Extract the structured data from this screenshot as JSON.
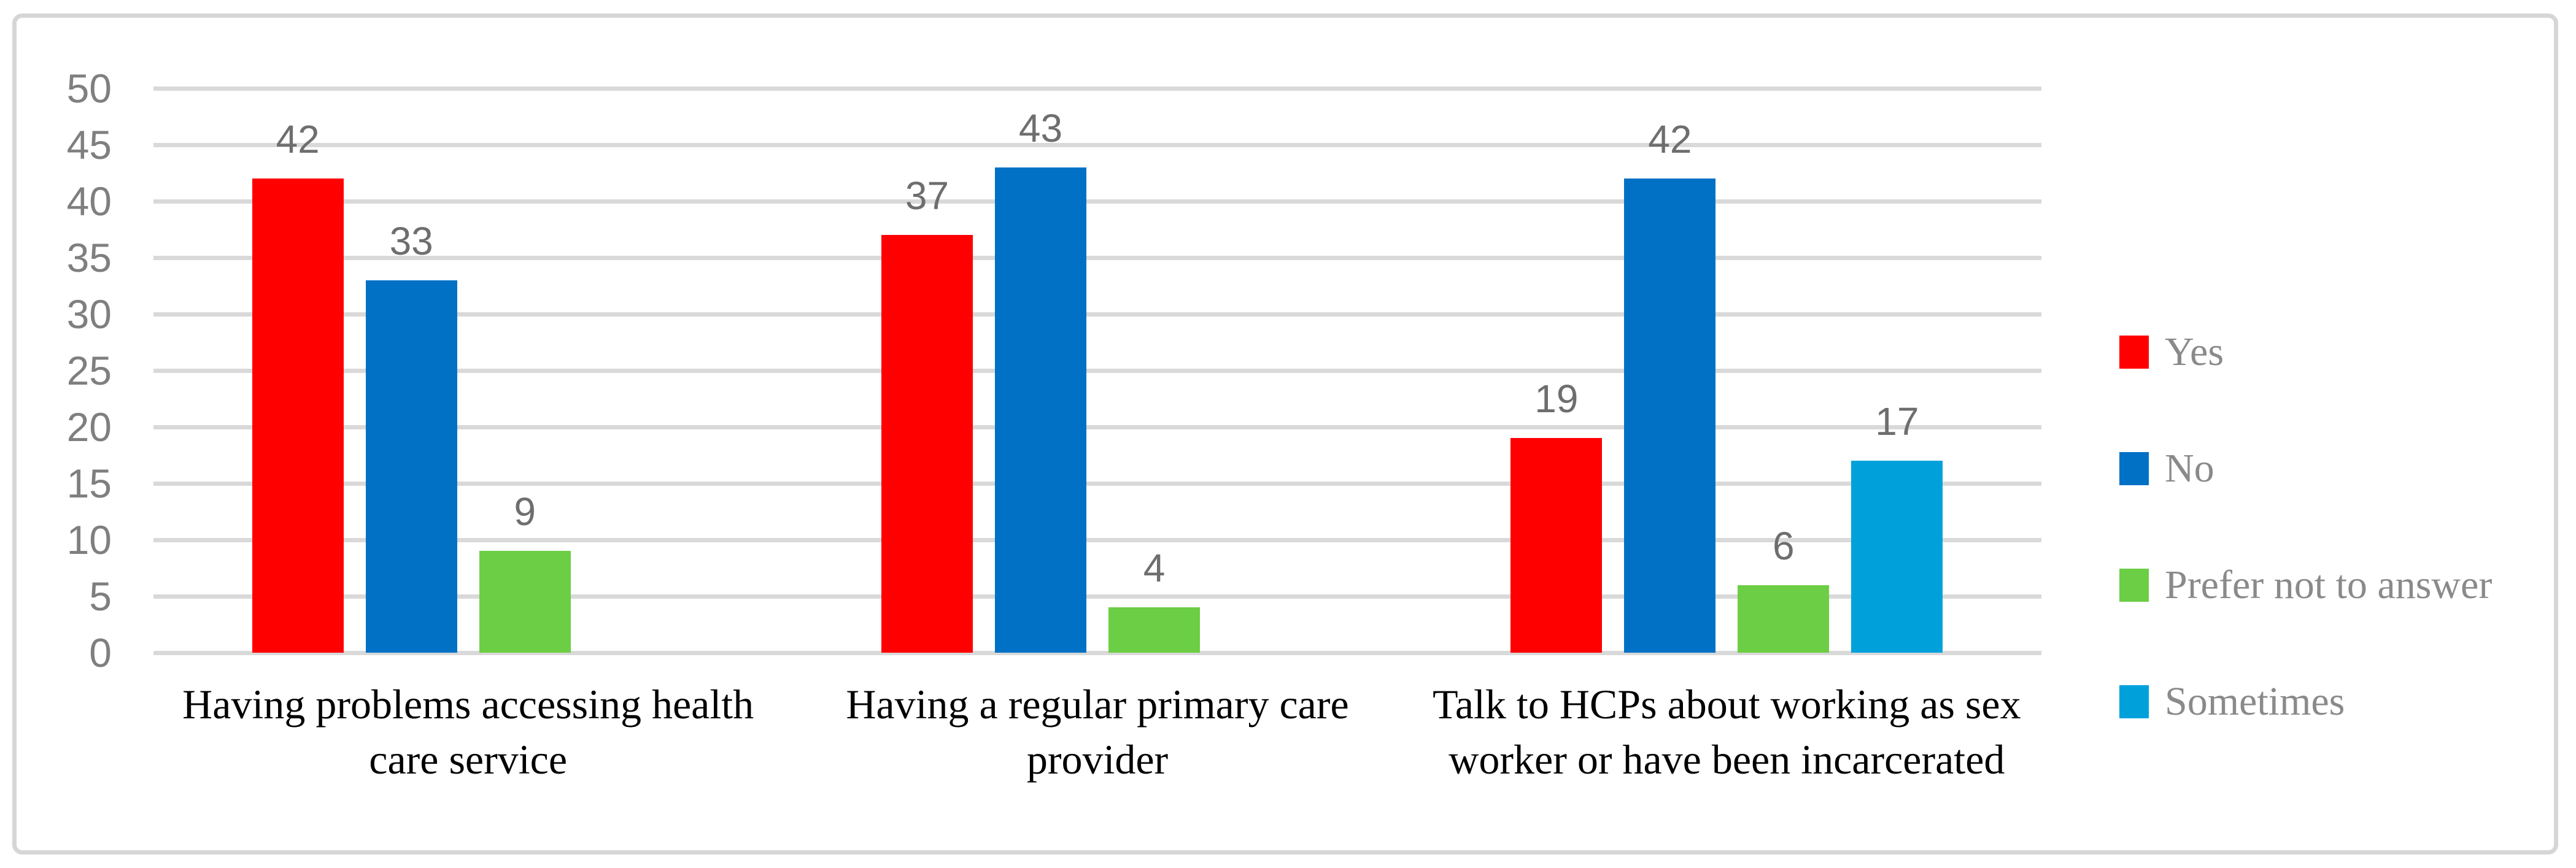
{
  "chart_data": {
    "type": "bar",
    "title": "",
    "xlabel": "",
    "ylabel": "",
    "categories": [
      "Having problems accessing health care service",
      "Having a  regular primary care provider",
      "Talk to HCPs about working as sex worker or have been incarcerated"
    ],
    "series": [
      {
        "name": "Yes",
        "color": "#FF0000",
        "values": [
          42,
          37,
          19
        ]
      },
      {
        "name": "No",
        "color": "#0071C5",
        "values": [
          33,
          43,
          42
        ]
      },
      {
        "name": "Prefer not to answer",
        "color": "#6CCE44",
        "values": [
          9,
          4,
          6
        ]
      },
      {
        "name": "Sometimes",
        "color": "#00A1DB",
        "values": [
          null,
          null,
          17
        ]
      }
    ],
    "ylim": [
      0,
      50
    ],
    "ytick_step": 5,
    "yticks": [
      0,
      5,
      10,
      15,
      20,
      25,
      30,
      35,
      40,
      45,
      50
    ],
    "grid": true,
    "data_labels": true,
    "legend_position": "right",
    "colors": {
      "axis_text": "#7F7F7F",
      "data_label_text": "#6E6E6E",
      "category_text": "#000000",
      "legend_text": "#8A8A8A",
      "gridline": "#D9D9D9",
      "frame_border": "#D6D6D6",
      "background": "#FFFFFF"
    }
  }
}
